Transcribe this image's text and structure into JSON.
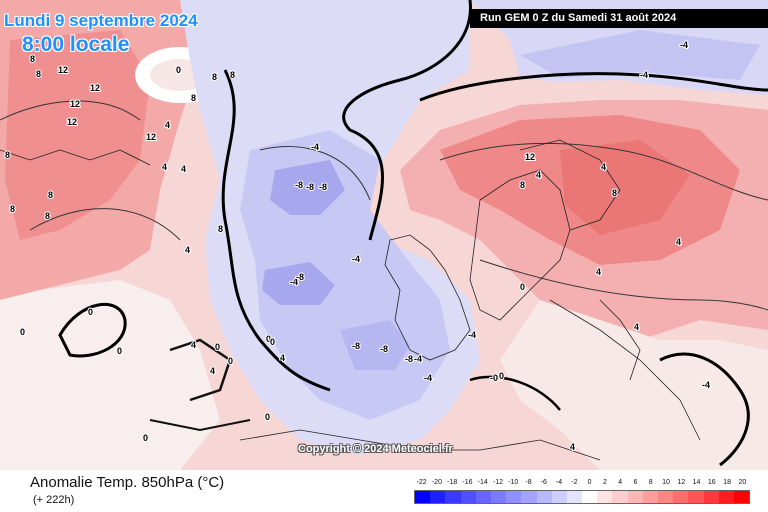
{
  "header": {
    "date": "Lundi 9 septembre 2024",
    "time": "8:00 locale",
    "run": "Run GEM 0 Z du Samedi 31 août 2024"
  },
  "footer": {
    "parameter": "Anomalie Temp. 850hPa (°C)",
    "lead_time": "(+ 222h)",
    "copyright": "Copyright © 2024 Meteociel.fr"
  },
  "legend": {
    "labels": [
      "-22",
      "-20",
      "-18",
      "-16",
      "-14",
      "-12",
      "-10",
      "-8",
      "-6",
      "-4",
      "-2",
      "0",
      "2",
      "4",
      "6",
      "8",
      "10",
      "12",
      "14",
      "16",
      "18",
      "20"
    ],
    "colors": [
      "#0000ff",
      "#1f1fff",
      "#3a3aff",
      "#5050ff",
      "#6666ff",
      "#7b7bff",
      "#8f8fff",
      "#a3a3ff",
      "#b8b8ff",
      "#cdcdff",
      "#e4e4ff",
      "#ffffff",
      "#ffe4e4",
      "#ffcdcd",
      "#ffb5b5",
      "#ff9d9d",
      "#ff8585",
      "#ff6d6d",
      "#ff5555",
      "#ff3a3a",
      "#ff1d1d",
      "#ff0000"
    ]
  },
  "map_labels": [
    {
      "text": "8"
    },
    {
      "text": "8"
    },
    {
      "text": "12"
    },
    {
      "text": "12"
    },
    {
      "text": "12"
    },
    {
      "text": "12"
    },
    {
      "text": "12"
    },
    {
      "text": "8"
    },
    {
      "text": "8"
    },
    {
      "text": "8"
    },
    {
      "text": "0"
    },
    {
      "text": "8"
    },
    {
      "text": "8"
    },
    {
      "text": "4"
    },
    {
      "text": "8"
    },
    {
      "text": "4"
    },
    {
      "text": "4"
    },
    {
      "text": "8"
    },
    {
      "text": "8"
    },
    {
      "text": "4"
    },
    {
      "text": "-4"
    },
    {
      "text": "-8"
    },
    {
      "text": "-8"
    },
    {
      "text": "-4"
    },
    {
      "text": "-8"
    },
    {
      "text": "-4"
    },
    {
      "text": "-8"
    },
    {
      "text": "-8"
    },
    {
      "text": "-4"
    },
    {
      "text": "-4"
    },
    {
      "text": "-8"
    },
    {
      "text": "-4"
    },
    {
      "text": "-8"
    },
    {
      "text": "12"
    },
    {
      "text": "4"
    },
    {
      "text": "8"
    },
    {
      "text": "4"
    },
    {
      "text": "8"
    },
    {
      "text": "4"
    },
    {
      "text": "4"
    },
    {
      "text": "0"
    },
    {
      "text": "0"
    },
    {
      "text": "0"
    },
    {
      "text": "4"
    },
    {
      "text": "0"
    },
    {
      "text": "4"
    },
    {
      "text": "0"
    },
    {
      "text": "0"
    },
    {
      "text": "4"
    },
    {
      "text": "-0"
    },
    {
      "text": "-0"
    },
    {
      "text": "-4"
    },
    {
      "text": "-4"
    },
    {
      "text": "0"
    },
    {
      "text": "4"
    },
    {
      "text": "-4"
    },
    {
      "text": "0"
    },
    {
      "text": "0"
    },
    {
      "text": "4"
    },
    {
      "text": "0"
    }
  ]
}
